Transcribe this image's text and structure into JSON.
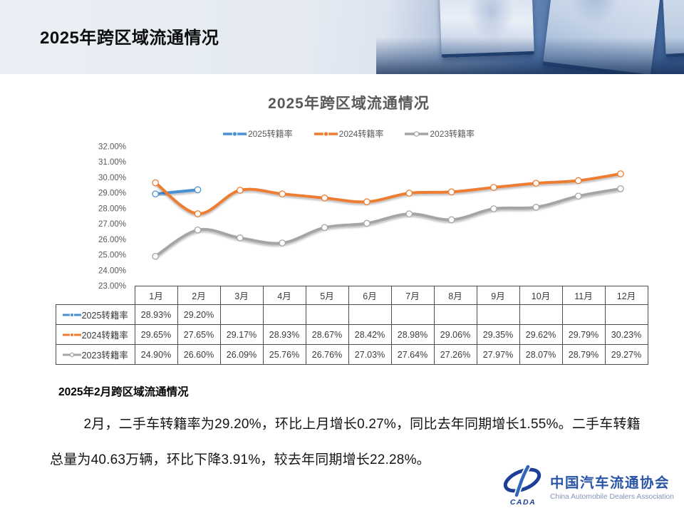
{
  "header": {
    "title": "2025年跨区域流通情况"
  },
  "analysis": {
    "heading": "2025年2月跨区域流通情况",
    "paragraph": "2月，二手车转籍率为29.20%，环比上月增长0.27%，同比去年同期增长1.55%。二手车转籍总量为40.63万辆，环比下降3.91%，较去年同期增长22.28%。"
  },
  "logo": {
    "badge": "CADA",
    "name_cn": "中国汽车流通协会",
    "name_en": "China Automobile Dealers Association",
    "brand_blue": "#1d3f98"
  },
  "chart_data": {
    "type": "line",
    "title": "2025年跨区域流通情况",
    "legend_position": "top",
    "grid": false,
    "xlabel": "",
    "ylabel": "",
    "categories": [
      "1月",
      "2月",
      "3月",
      "4月",
      "5月",
      "6月",
      "7月",
      "8月",
      "9月",
      "10月",
      "11月",
      "12月"
    ],
    "series": [
      {
        "name": "2025转籍率",
        "color": "#4A90D2",
        "legend_marker": "filled",
        "values": [
          28.93,
          29.2,
          null,
          null,
          null,
          null,
          null,
          null,
          null,
          null,
          null,
          null
        ]
      },
      {
        "name": "2024转籍率",
        "color": "#ED7D31",
        "legend_marker": "filled",
        "values": [
          29.65,
          27.65,
          29.17,
          28.93,
          28.67,
          28.42,
          28.98,
          29.06,
          29.35,
          29.62,
          29.79,
          30.23
        ]
      },
      {
        "name": "2023转籍率",
        "color": "#A5A5A5",
        "legend_marker": "open",
        "values": [
          24.9,
          26.6,
          26.09,
          25.76,
          26.76,
          27.03,
          27.64,
          27.26,
          27.97,
          28.07,
          28.79,
          29.27
        ]
      }
    ],
    "ylim": [
      23,
      32
    ],
    "ytick_step": 1,
    "yticks": [
      "32.00%",
      "31.00%",
      "30.00%",
      "29.00%",
      "28.00%",
      "27.00%",
      "26.00%",
      "25.00%",
      "24.00%",
      "23.00%"
    ],
    "value_format": "percent-2dp"
  }
}
